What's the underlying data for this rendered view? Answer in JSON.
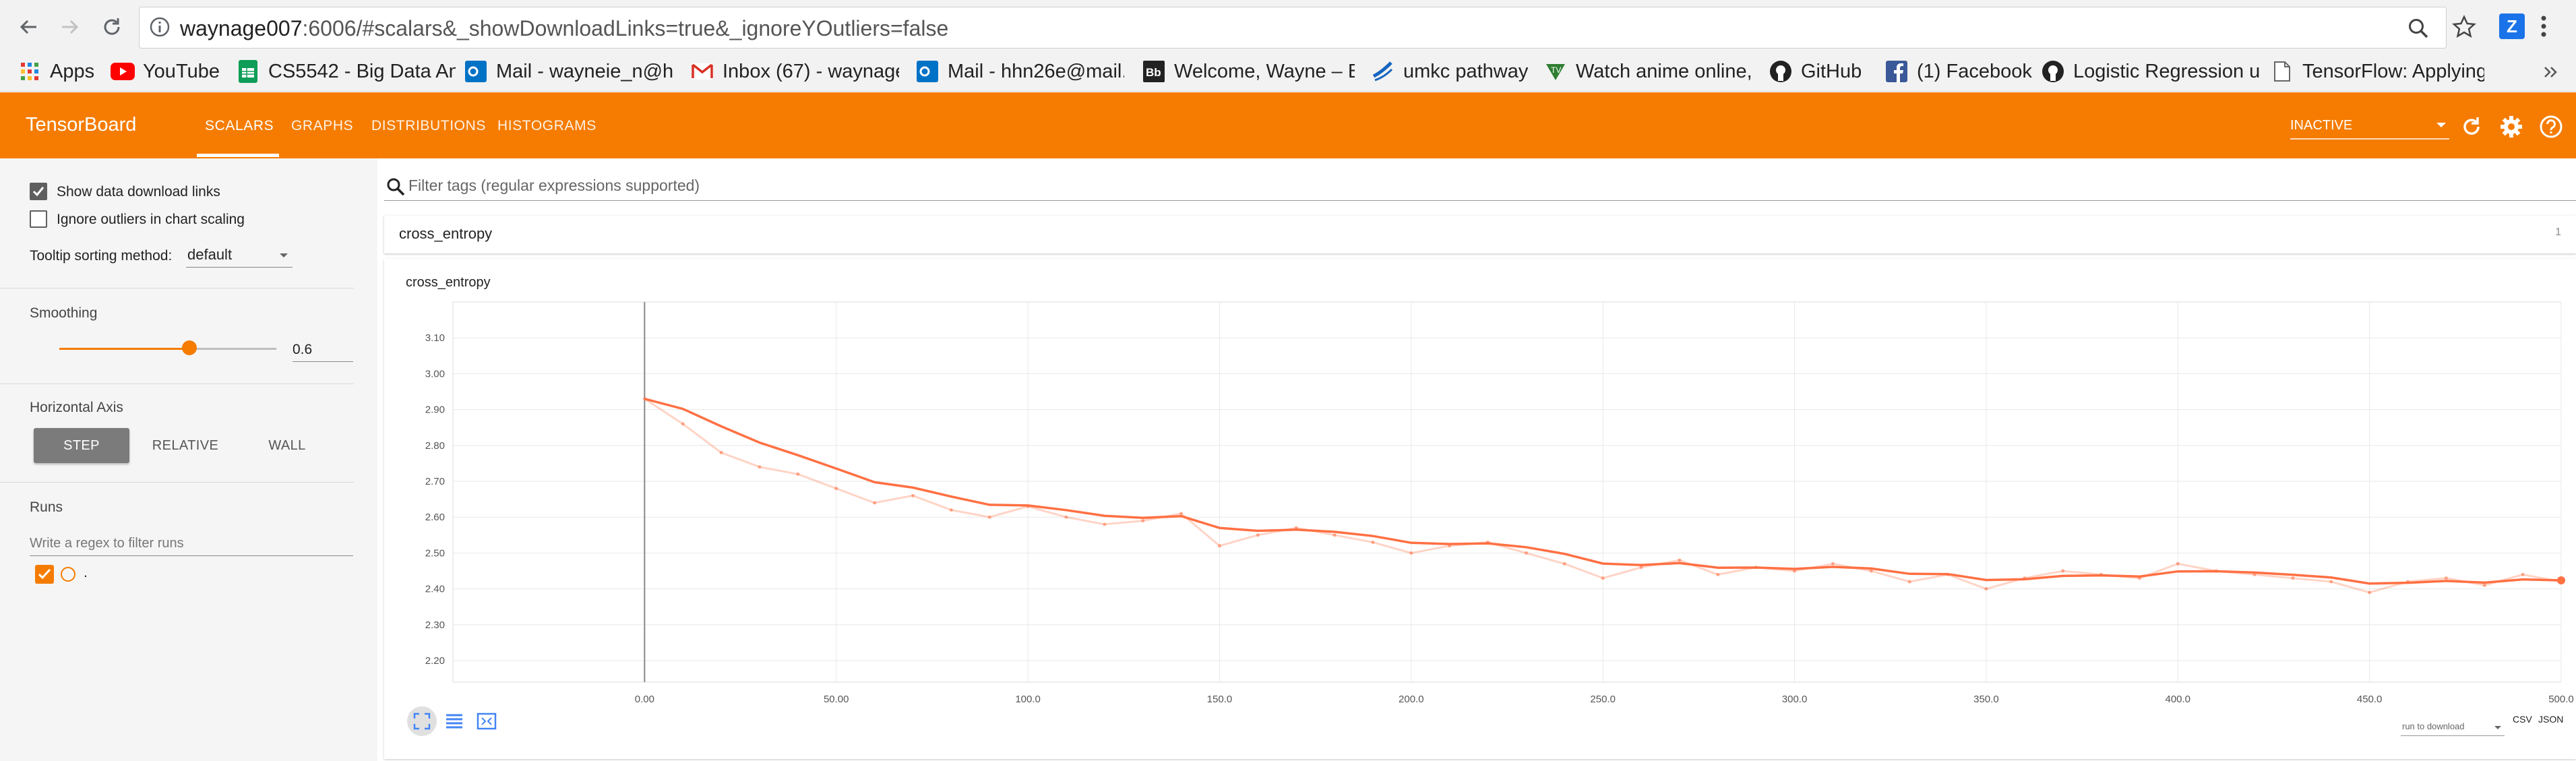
{
  "browser": {
    "url_host": "waynage007",
    "url_rest": ":6006/#scalars&_showDownloadLinks=true&_ignoreYOutliers=false",
    "bookmarks": [
      {
        "label": "Apps",
        "icon": "apps-grid-icon"
      },
      {
        "label": "YouTube",
        "icon": "youtube-icon"
      },
      {
        "label": "CS5542 - Big Data An",
        "icon": "sheets-icon"
      },
      {
        "label": "Mail - wayneie_n@ho",
        "icon": "outlook-icon"
      },
      {
        "label": "Inbox (67) - waynage",
        "icon": "gmail-icon"
      },
      {
        "label": "Mail - hhn26e@mail.",
        "icon": "outlook-icon"
      },
      {
        "label": "Welcome, Wayne – Bl",
        "icon": "blackboard-icon"
      },
      {
        "label": "umkc pathway",
        "icon": "umkc-icon"
      },
      {
        "label": "Watch anime online, ",
        "icon": "anime-icon"
      },
      {
        "label": "GitHub",
        "icon": "github-icon"
      },
      {
        "label": "(1) Facebook",
        "icon": "facebook-icon"
      },
      {
        "label": "Logistic Regression u",
        "icon": "github-icon"
      },
      {
        "label": "TensorFlow: Applying",
        "icon": "page-icon"
      }
    ],
    "extension_label": "Z"
  },
  "header": {
    "title": "TensorBoard",
    "tabs": [
      "SCALARS",
      "GRAPHS",
      "DISTRIBUTIONS",
      "HISTOGRAMS"
    ],
    "run_status": "INACTIVE",
    "brand_color": "#f57c00"
  },
  "sidebar": {
    "show_download_links": {
      "label": "Show data download links",
      "checked": true
    },
    "ignore_outliers": {
      "label": "Ignore outliers in chart scaling",
      "checked": false
    },
    "tooltip_sorting": {
      "label": "Tooltip sorting method:",
      "value": "default"
    },
    "smoothing": {
      "label": "Smoothing",
      "value": "0.6",
      "fraction": 0.6
    },
    "horizontal_axis": {
      "label": "Horizontal Axis",
      "options": [
        "STEP",
        "RELATIVE",
        "WALL"
      ],
      "selected": "STEP"
    },
    "runs": {
      "label": "Runs",
      "filter_placeholder": "Write a regex to filter runs",
      "items": [
        {
          "name": ".",
          "checked": true
        }
      ]
    }
  },
  "main": {
    "filter_placeholder": "Filter tags (regular expressions supported)",
    "group": {
      "name": "cross_entropy",
      "count": "1"
    },
    "chart_title": "cross_entropy",
    "download": {
      "run_placeholder": "run to download",
      "csv": "CSV",
      "json": "JSON"
    }
  },
  "chart_data": {
    "type": "line",
    "title": "cross_entropy",
    "xlabel": "",
    "ylabel": "",
    "x_ticks": [
      "0.00",
      "50.00",
      "100.0",
      "150.0",
      "200.0",
      "250.0",
      "300.0",
      "350.0",
      "400.0",
      "450.0",
      "500.0"
    ],
    "y_ticks": [
      "2.20",
      "2.30",
      "2.40",
      "2.50",
      "2.60",
      "2.70",
      "2.80",
      "2.90",
      "3.00",
      "3.10"
    ],
    "xlim": [
      -50,
      500
    ],
    "ylim": [
      2.14,
      3.2
    ],
    "smoothing": 0.6,
    "grid": true,
    "series": [
      {
        "color": "#ff7043",
        "x": [
          0,
          10,
          20,
          30,
          40,
          50,
          60,
          70,
          80,
          90,
          100,
          110,
          120,
          130,
          140,
          150,
          160,
          170,
          180,
          190,
          200,
          210,
          220,
          230,
          240,
          250,
          260,
          270,
          280,
          290,
          300,
          310,
          320,
          330,
          340,
          350,
          360,
          370,
          380,
          390,
          400,
          410,
          420,
          430,
          440,
          450,
          460,
          470,
          480,
          490,
          500
        ],
        "values": [
          2.93,
          2.86,
          2.78,
          2.74,
          2.72,
          2.68,
          2.64,
          2.66,
          2.62,
          2.6,
          2.63,
          2.6,
          2.58,
          2.59,
          2.61,
          2.52,
          2.55,
          2.57,
          2.55,
          2.53,
          2.5,
          2.52,
          2.53,
          2.5,
          2.47,
          2.43,
          2.46,
          2.48,
          2.44,
          2.46,
          2.45,
          2.47,
          2.45,
          2.42,
          2.44,
          2.4,
          2.43,
          2.45,
          2.44,
          2.43,
          2.47,
          2.45,
          2.44,
          2.43,
          2.42,
          2.39,
          2.42,
          2.43,
          2.41,
          2.44,
          2.42
        ]
      }
    ]
  }
}
